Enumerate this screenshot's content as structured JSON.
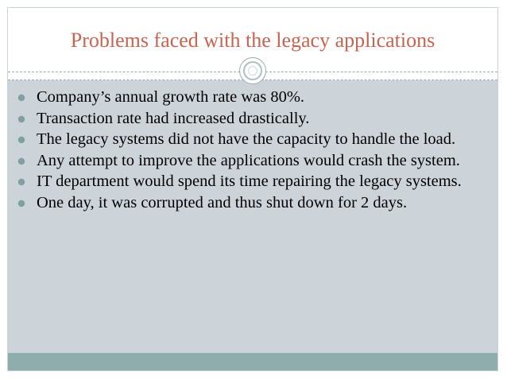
{
  "slide": {
    "title": "Problems faced with the legacy applications",
    "bullets": [
      "Company’s annual growth rate was 80%.",
      "Transaction rate had increased drastically.",
      "The legacy systems did not have the capacity to handle the load.",
      "Any attempt to improve the applications would crash the system.",
      "IT department would spend its time repairing the legacy systems.",
      " One day, it was corrupted and thus shut down for 2 days."
    ]
  },
  "colors": {
    "title": "#c8634f",
    "content_background": "#ccd4d9",
    "footer_bar": "#8fadad",
    "bullet_marker": "#7f9fa0"
  },
  "icons": {
    "ornament": "circle-ornament-icon",
    "bullet": "bullet-dot-icon"
  }
}
